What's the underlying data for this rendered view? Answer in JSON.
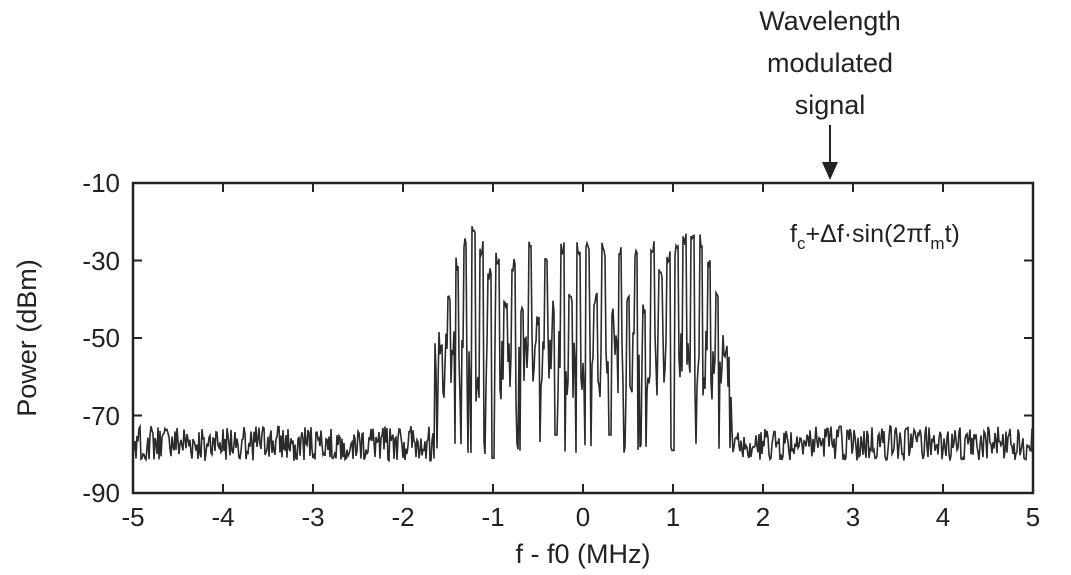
{
  "chart_data": {
    "type": "line",
    "title": "",
    "xlabel": "f - f0 (MHz)",
    "ylabel": "Power (dBm)",
    "xlim": [
      -5,
      5
    ],
    "ylim": [
      -90,
      -10
    ],
    "xticks": [
      -5,
      -4,
      -3,
      -2,
      -1,
      0,
      1,
      2,
      3,
      4,
      5
    ],
    "yticks": [
      -10,
      -30,
      -50,
      -70,
      -90
    ],
    "xtick_labels": [
      "-5",
      "-4",
      "-3",
      "-2",
      "-1",
      "0",
      "1",
      "2",
      "3",
      "4",
      "5"
    ],
    "ytick_labels": [
      "-10",
      "-30",
      "-50",
      "-70",
      "-90"
    ],
    "grid": false,
    "annotation": {
      "lines": [
        "Wavelength",
        "modulated",
        "signal"
      ],
      "points_to_x": 2.5
    },
    "formula": {
      "f1": "f",
      "s1": "c",
      "t1": "+Δf·sin(2πf",
      "s2": "m",
      "t2": "t)"
    },
    "series": [
      {
        "color": "#2b2b2b",
        "noise_floor_dbm": -77,
        "noise_spread_db": 5,
        "modulated_band_mhz": [
          -1.65,
          1.65
        ],
        "band_peak_x": [
          -1.58,
          -1.49,
          -1.4,
          -1.31,
          -1.22,
          -1.13,
          -1.04,
          -0.95,
          -0.86,
          -0.77,
          -0.68,
          -0.59,
          -0.5,
          -0.41,
          -0.32,
          -0.23,
          -0.14,
          -0.05,
          0.05,
          0.14,
          0.23,
          0.32,
          0.41,
          0.5,
          0.59,
          0.68,
          0.77,
          0.86,
          0.95,
          1.04,
          1.13,
          1.22,
          1.31,
          1.4,
          1.49,
          1.58
        ],
        "band_peak_y": [
          -55,
          -42,
          -33,
          -27,
          -25,
          -29,
          -36,
          -31,
          -43,
          -33,
          -44,
          -29,
          -47,
          -30,
          -44,
          -29,
          -42,
          -29,
          -29,
          -42,
          -29,
          -44,
          -29,
          -42,
          -29,
          -44,
          -29,
          -36,
          -31,
          -29,
          -26,
          -25,
          -27,
          -33,
          -42,
          -55
        ],
        "band_trough_x": [
          -1.0,
          -0.3,
          0.3,
          1.0
        ],
        "band_trough_y": [
          -81,
          -75,
          -75,
          -79
        ]
      }
    ]
  }
}
